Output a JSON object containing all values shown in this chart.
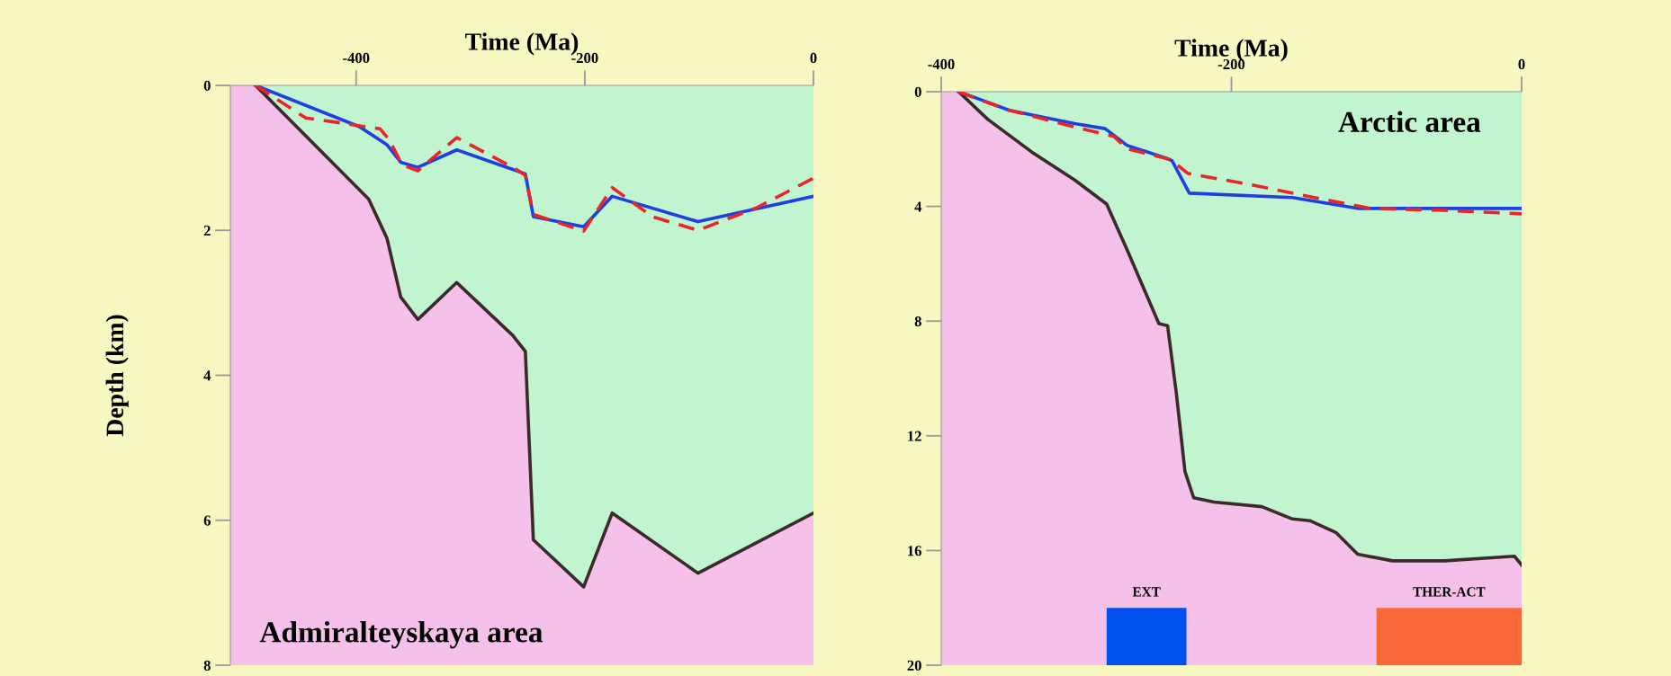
{
  "chart_data": [
    {
      "type": "area",
      "xlabel": "Time (Ma)",
      "ylabel": "Depth (km)",
      "xlim": [
        -510,
        0
      ],
      "ylim": [
        8,
        0
      ],
      "xticks": [
        -400,
        -200,
        0
      ],
      "yticks": [
        0,
        2,
        4,
        6,
        8
      ],
      "annotations": [
        "Admiralteyskaya area"
      ],
      "bands": [
        {
          "axis": "y",
          "from": 0,
          "to": 8,
          "label": null,
          "color": "#f5c0ea"
        }
      ],
      "series": [
        {
          "color": "#c0f5d0",
          "x": [
            -488,
            -389,
            -373,
            -361,
            -346,
            -312,
            -263,
            -252,
            -245,
            -201,
            -176,
            -101,
            0
          ],
          "values": [
            0,
            1.57,
            2.11,
            2.92,
            3.23,
            2.72,
            3.45,
            3.67,
            6.27,
            6.92,
            5.9,
            6.73,
            5.9
          ]
        },
        {
          "type": "line",
          "color": "#1f3fe0",
          "line_style": "solid",
          "x": [
            -488,
            -397,
            -373,
            -361,
            -346,
            -312,
            -263,
            -252,
            -245,
            -201,
            -176,
            -101,
            0
          ],
          "values": [
            0,
            0.57,
            0.82,
            1.06,
            1.13,
            0.89,
            1.16,
            1.22,
            1.81,
            1.95,
            1.53,
            1.88,
            1.53
          ]
        },
        {
          "type": "line",
          "color": "#e8262a",
          "line_style": "dashed",
          "x": [
            -488,
            -444,
            -417,
            -379,
            -371,
            -360,
            -346,
            -312,
            -263,
            -252,
            -245,
            -201,
            -176,
            -141,
            -101,
            -50,
            0
          ],
          "values": [
            0,
            0.45,
            0.51,
            0.6,
            0.75,
            1.09,
            1.18,
            0.72,
            1.13,
            1.24,
            1.78,
            2.01,
            1.41,
            1.81,
            2.0,
            1.69,
            1.28
          ]
        }
      ]
    },
    {
      "type": "area",
      "xlabel": "Time (Ma)",
      "xlim": [
        -400,
        0
      ],
      "ylim": [
        20,
        0
      ],
      "xticks": [
        -400,
        -200,
        0
      ],
      "yticks": [
        0,
        4,
        8,
        12,
        16,
        20
      ],
      "annotations": [
        "Arctic area"
      ],
      "bands": [
        {
          "axis": "y",
          "from": 0,
          "to": 20,
          "label": null,
          "color": "#f5c0ea"
        },
        {
          "axis": "x",
          "from": -286,
          "to": -231,
          "label": "EXT",
          "color": "#0050f0"
        },
        {
          "axis": "x",
          "from": -100,
          "to": 0,
          "label": "THER-ACT",
          "color": "#f86838"
        }
      ],
      "series": [
        {
          "color": "#c0f5d0",
          "x": [
            -388,
            -368,
            -338,
            -308,
            -286,
            -272,
            -250,
            -244,
            -238,
            -232,
            -226,
            -212,
            -179,
            -158,
            -146,
            -128,
            -113,
            -89,
            -53,
            -5,
            0
          ],
          "values": [
            0,
            0.96,
            2.09,
            3.08,
            3.92,
            5.5,
            8.09,
            8.16,
            10.5,
            13.25,
            14.16,
            14.31,
            14.47,
            14.9,
            14.96,
            15.37,
            16.13,
            16.36,
            16.36,
            16.2,
            16.5
          ]
        },
        {
          "type": "line",
          "color": "#1f3fe0",
          "line_style": "solid",
          "x": [
            -388,
            -377,
            -353,
            -308,
            -287,
            -272,
            -245,
            -241,
            -229,
            -158,
            -113,
            0
          ],
          "values": [
            0,
            0.2,
            0.65,
            1.11,
            1.29,
            1.87,
            2.32,
            2.4,
            3.54,
            3.69,
            4.07,
            4.07
          ]
        },
        {
          "type": "line",
          "color": "#e8262a",
          "line_style": "dashed",
          "x": [
            -388,
            -374,
            -353,
            -308,
            -281,
            -272,
            -242,
            -230,
            -188,
            -143,
            -104,
            -53,
            0
          ],
          "values": [
            0,
            0.27,
            0.65,
            1.23,
            1.56,
            1.99,
            2.37,
            2.85,
            3.23,
            3.69,
            4.07,
            4.14,
            4.26
          ]
        }
      ]
    }
  ]
}
